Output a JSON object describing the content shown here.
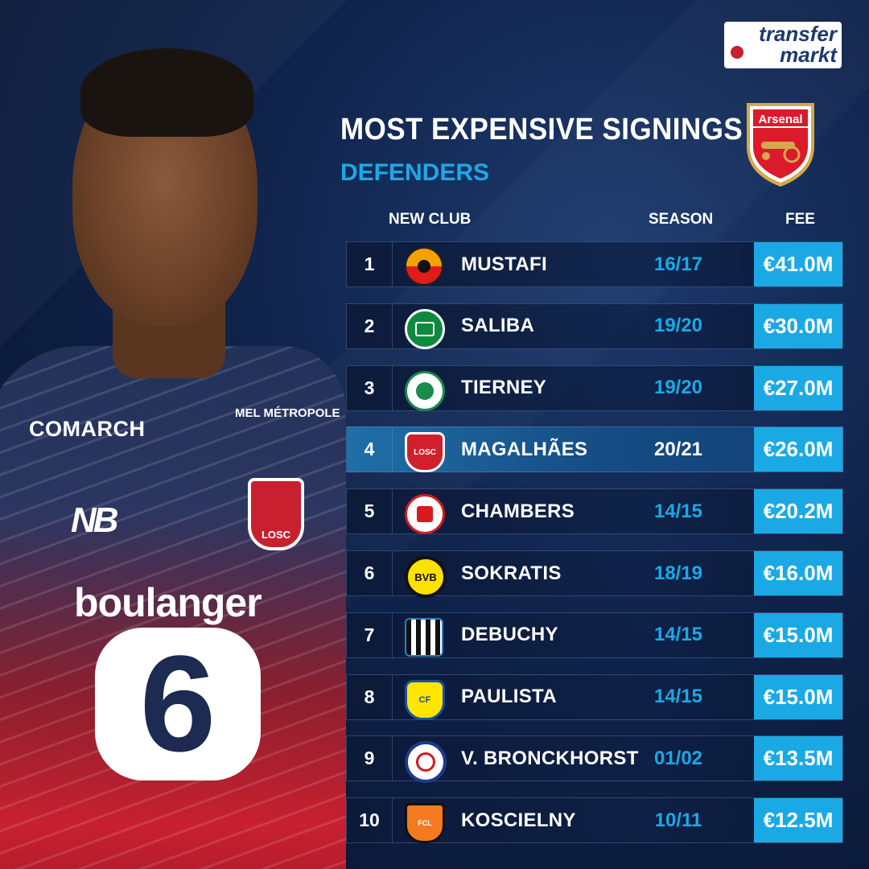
{
  "brand": {
    "logo_line1": "transfer",
    "logo_line2": "markt"
  },
  "header": {
    "title": "MOST EXPENSIVE SIGNINGS",
    "subtitle": "DEFENDERS",
    "club_crest_label": "Arsenal"
  },
  "columns": {
    "club": "NEW CLUB",
    "season": "SEASON",
    "fee": "FEE"
  },
  "player_shirt": {
    "sponsor_left": "COMARCH",
    "sponsor_right_line1": "MEL MÉTROPOLE",
    "sponsor_main": "boulanger",
    "number": "6",
    "crest_text": "LOSC"
  },
  "colors": {
    "accent": "#1ba9e6",
    "highlight_row": "#1f6fa6",
    "background": "#0f2249"
  },
  "rows": [
    {
      "rank": "1",
      "name": "MUSTAFI",
      "season": "16/17",
      "fee": "€41.0M",
      "club_icon": "valencia-crest-icon",
      "highlight": false
    },
    {
      "rank": "2",
      "name": "SALIBA",
      "season": "19/20",
      "fee": "€30.0M",
      "club_icon": "saint-etienne-crest-icon",
      "highlight": false
    },
    {
      "rank": "3",
      "name": "TIERNEY",
      "season": "19/20",
      "fee": "€27.0M",
      "club_icon": "celtic-crest-icon",
      "highlight": false
    },
    {
      "rank": "4",
      "name": "MAGALHÃES",
      "season": "20/21",
      "fee": "€26.0M",
      "club_icon": "lille-crest-icon",
      "highlight": true
    },
    {
      "rank": "5",
      "name": "CHAMBERS",
      "season": "14/15",
      "fee": "€20.2M",
      "club_icon": "southampton-crest-icon",
      "highlight": false
    },
    {
      "rank": "6",
      "name": "SOKRATIS",
      "season": "18/19",
      "fee": "€16.0M",
      "club_icon": "dortmund-crest-icon",
      "highlight": false
    },
    {
      "rank": "7",
      "name": "DEBUCHY",
      "season": "14/15",
      "fee": "€15.0M",
      "club_icon": "newcastle-crest-icon",
      "highlight": false
    },
    {
      "rank": "8",
      "name": "PAULISTA",
      "season": "14/15",
      "fee": "€15.0M",
      "club_icon": "villarreal-crest-icon",
      "highlight": false
    },
    {
      "rank": "9",
      "name": "V. BRONCKHORST",
      "season": "01/02",
      "fee": "€13.5M",
      "club_icon": "rangers-crest-icon",
      "highlight": false
    },
    {
      "rank": "10",
      "name": "KOSCIELNY",
      "season": "10/11",
      "fee": "€12.5M",
      "club_icon": "lorient-crest-icon",
      "highlight": false
    }
  ]
}
